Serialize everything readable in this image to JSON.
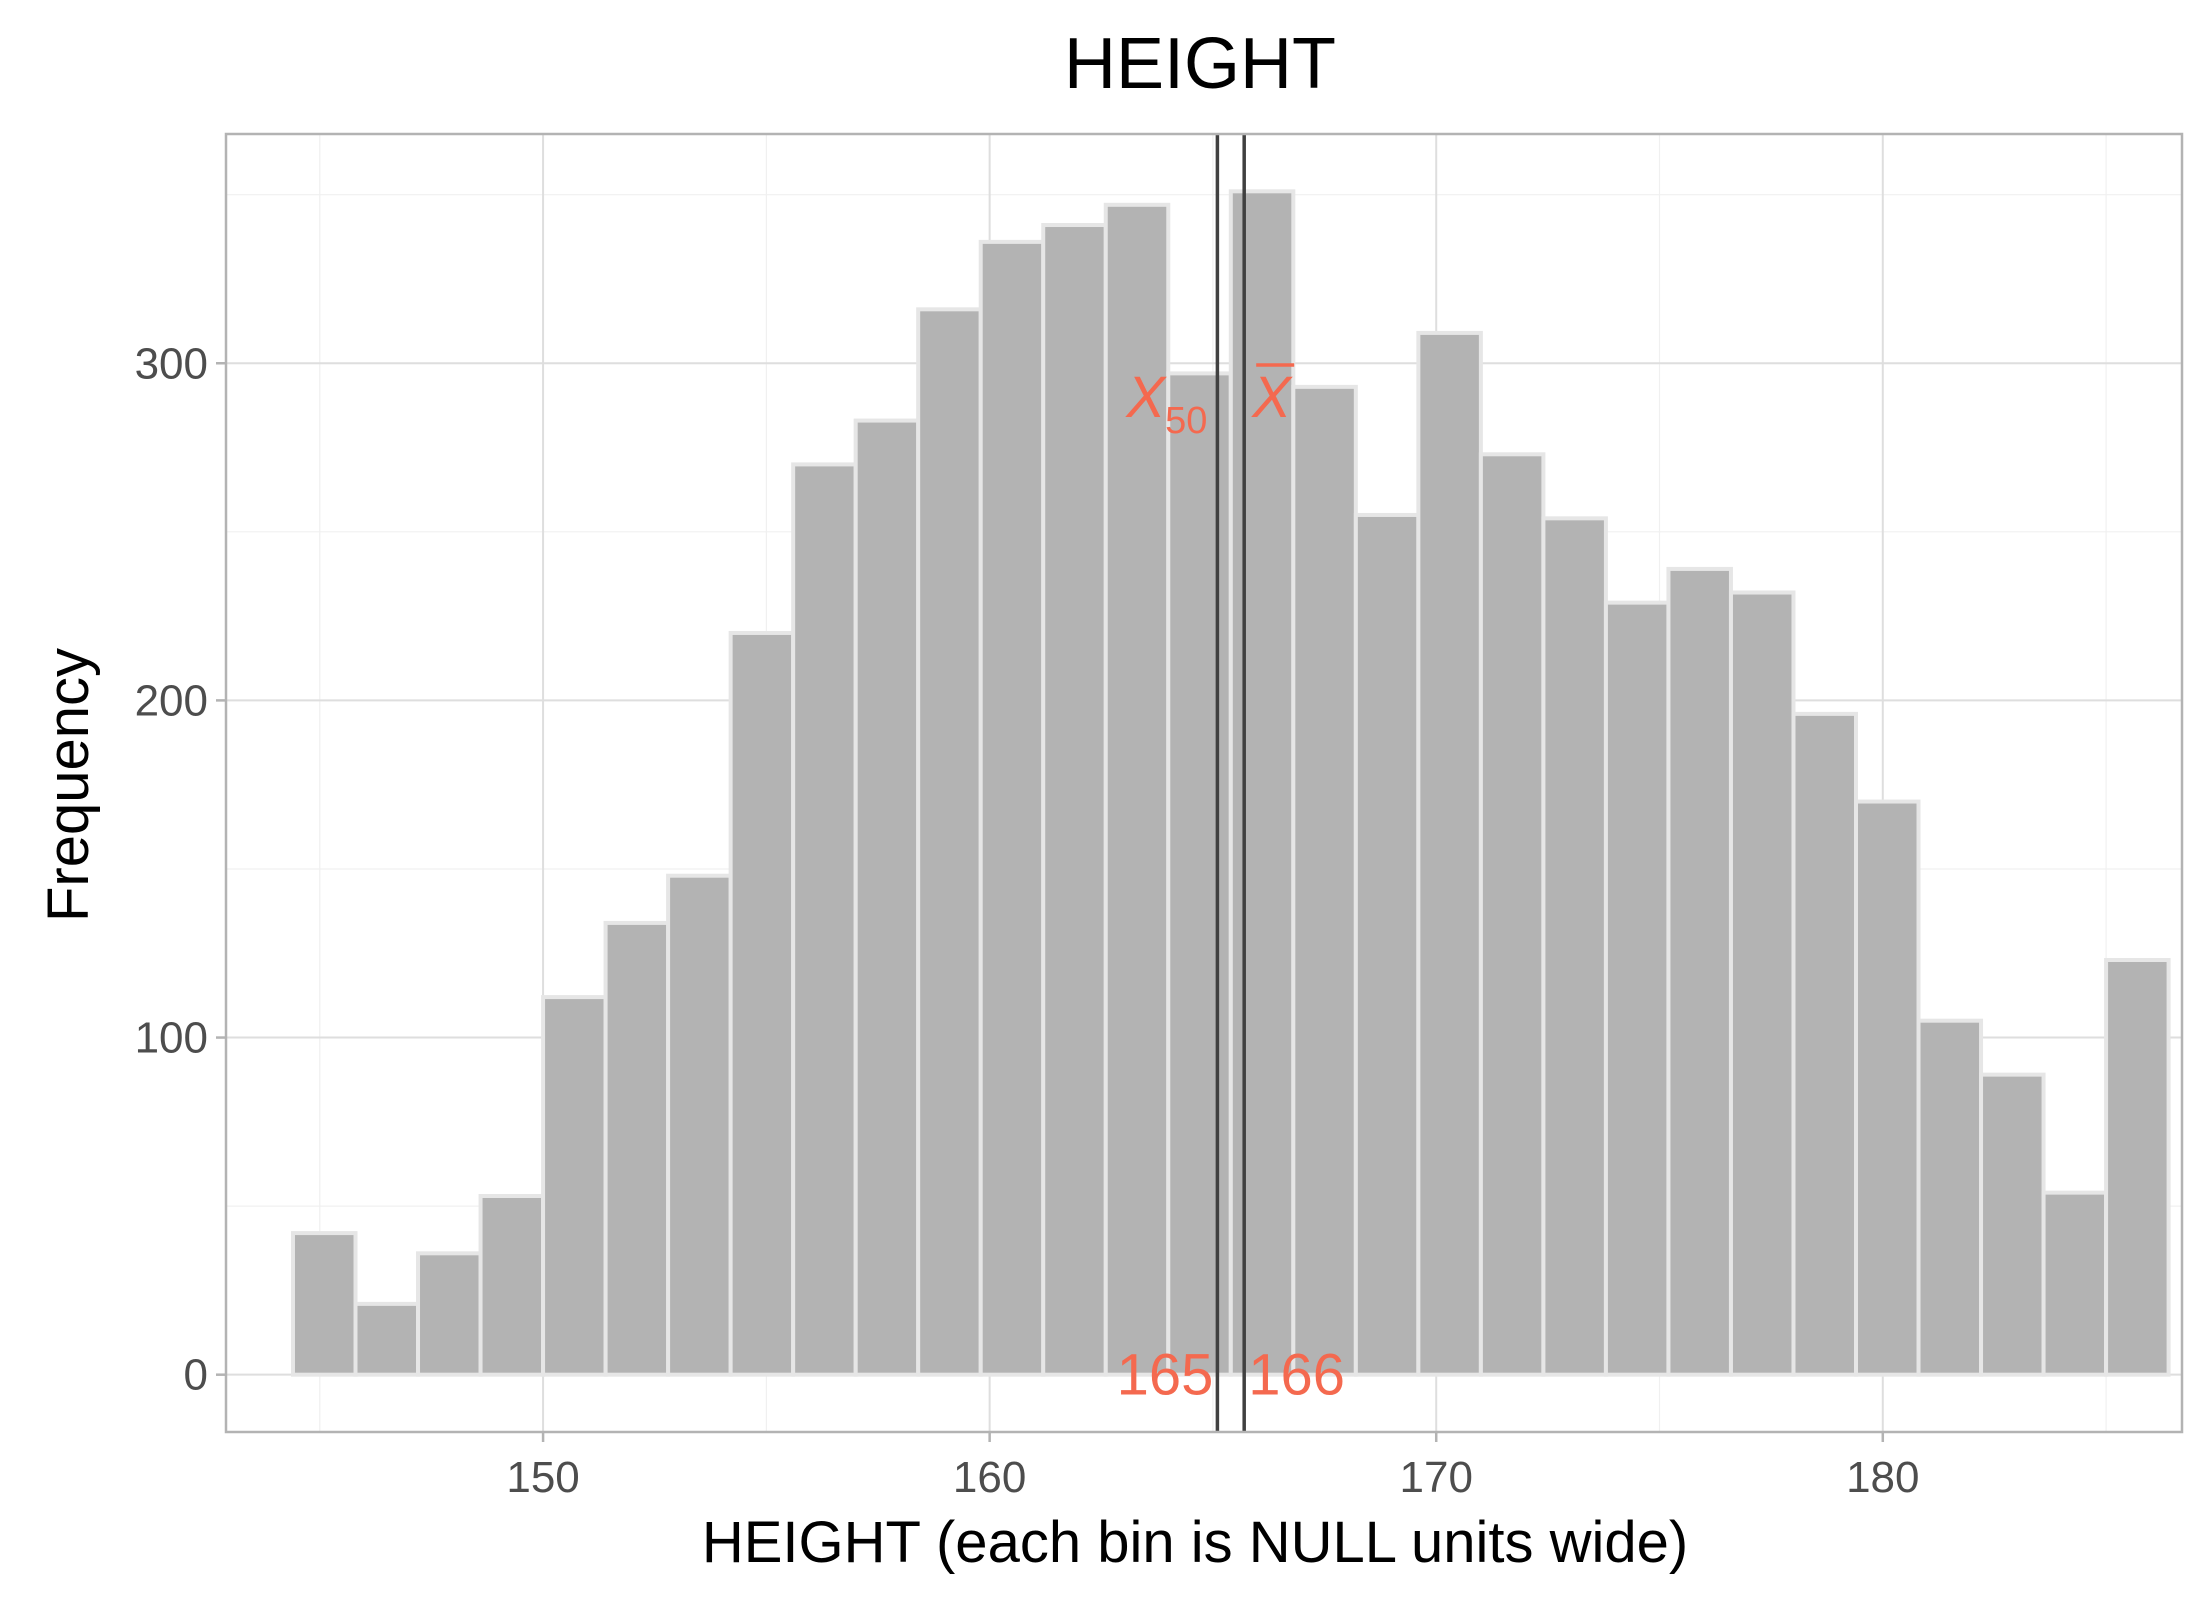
{
  "chart_data": {
    "type": "bar",
    "title": "HEIGHT",
    "xlabel": "HEIGHT (each bin is NULL units wide)",
    "ylabel": "Frequency",
    "xlim": [
      142.9,
      186.7
    ],
    "ylim": [
      -17,
      368
    ],
    "x_ticks": [
      150,
      160,
      170,
      180
    ],
    "y_ticks": [
      0,
      100,
      200,
      300
    ],
    "grid": true,
    "bin_edges": [
      144.4,
      145.8,
      147.2,
      148.6,
      150.0,
      151.4,
      152.8,
      154.2,
      155.6,
      157.0,
      158.4,
      159.8,
      161.2,
      162.6,
      164.0,
      165.4,
      166.8,
      168.2,
      169.6,
      171.0,
      172.4,
      173.8,
      175.2,
      176.6,
      178.0,
      179.4,
      180.8,
      182.2,
      183.6,
      185.0,
      186.4
    ],
    "values": [
      42,
      21,
      36,
      53,
      112,
      134,
      148,
      220,
      270,
      283,
      316,
      336,
      341,
      347,
      297,
      351,
      293,
      255,
      309,
      273,
      254,
      229,
      239,
      232,
      196,
      170,
      105,
      89,
      54,
      123
    ],
    "bar_fill": "#b3b3b3",
    "bar_outline": "#e6e6e6",
    "reference_lines": [
      {
        "name": "median",
        "x": 165.1,
        "label": "X",
        "sub": "50",
        "value_label": "165"
      },
      {
        "name": "mean",
        "x": 165.7,
        "label": "X",
        "overline": true,
        "value_label": "166"
      }
    ],
    "line_color": "#404040",
    "annotation_color": "#f4694f"
  }
}
